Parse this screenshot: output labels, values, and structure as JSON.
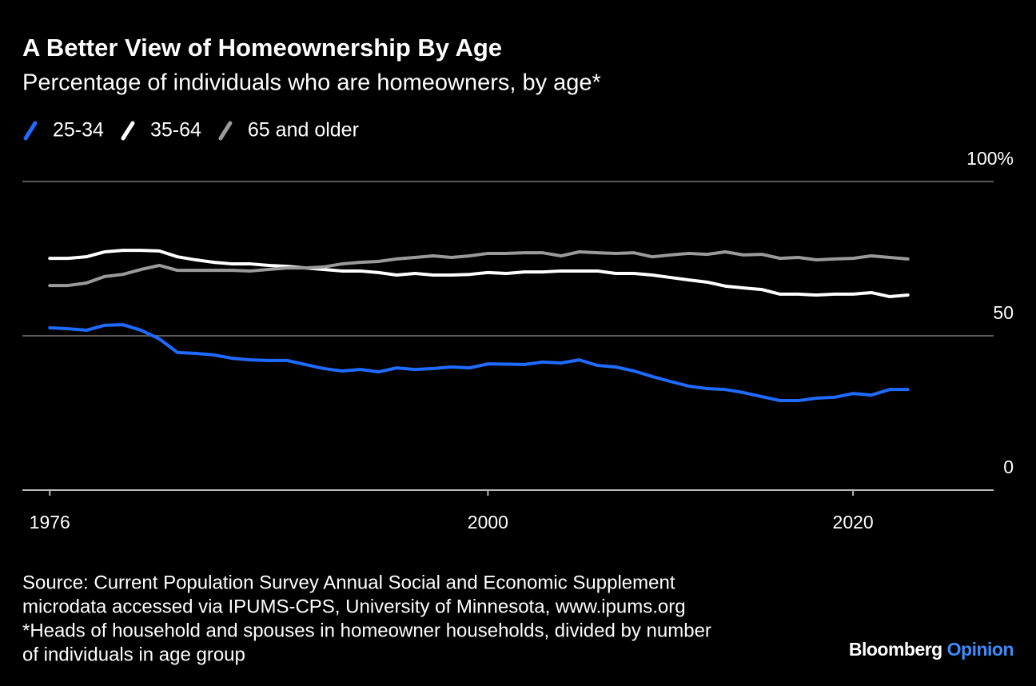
{
  "chart_data": {
    "type": "line",
    "title": "A Better View of Homeownership By Age",
    "subtitle": "Percentage of individuals who are homeowners, by age*",
    "x": [
      1976,
      1977,
      1978,
      1979,
      1980,
      1981,
      1982,
      1983,
      1984,
      1985,
      1986,
      1987,
      1988,
      1989,
      1990,
      1991,
      1992,
      1993,
      1994,
      1995,
      1996,
      1997,
      1998,
      1999,
      2000,
      2001,
      2002,
      2003,
      2004,
      2005,
      2006,
      2007,
      2008,
      2009,
      2010,
      2011,
      2012,
      2013,
      2014,
      2015,
      2016,
      2017,
      2018,
      2019,
      2020,
      2021,
      2022,
      2023
    ],
    "series": [
      {
        "name": "25-34",
        "color": "#1f6bff",
        "values": [
          52.6,
          52.3,
          51.8,
          53.4,
          53.6,
          51.8,
          49.0,
          44.6,
          44.3,
          43.8,
          42.7,
          42.2,
          42.0,
          42.0,
          40.7,
          39.4,
          38.6,
          39.1,
          38.3,
          39.6,
          39.1,
          39.4,
          39.9,
          39.6,
          40.9,
          40.8,
          40.7,
          41.5,
          41.2,
          42.2,
          40.4,
          39.9,
          38.6,
          36.8,
          35.2,
          33.7,
          32.9,
          32.6,
          31.6,
          30.3,
          29.0,
          29.0,
          29.8,
          30.1,
          31.3,
          30.8,
          32.6,
          32.6
        ]
      },
      {
        "name": "35-64",
        "color": "#ffffff",
        "values": [
          75.1,
          75.1,
          75.6,
          77.2,
          77.7,
          77.7,
          77.5,
          75.6,
          74.6,
          73.8,
          73.3,
          73.3,
          72.8,
          72.5,
          72.0,
          71.5,
          71.0,
          71.0,
          70.5,
          69.7,
          70.2,
          69.7,
          69.7,
          69.9,
          70.5,
          70.2,
          70.7,
          70.7,
          71.0,
          71.0,
          71.0,
          70.2,
          70.2,
          69.7,
          68.9,
          68.1,
          67.4,
          66.1,
          65.5,
          65.0,
          63.5,
          63.5,
          63.2,
          63.5,
          63.5,
          64.0,
          62.7,
          63.2
        ]
      },
      {
        "name": "65 and older",
        "color": "#9a9a9a",
        "values": [
          66.3,
          66.3,
          67.1,
          69.2,
          69.9,
          71.5,
          72.8,
          71.2,
          71.2,
          71.2,
          71.2,
          71.0,
          71.5,
          72.0,
          72.0,
          72.3,
          73.3,
          73.8,
          74.1,
          74.9,
          75.4,
          75.9,
          75.4,
          75.9,
          76.7,
          76.7,
          76.9,
          76.9,
          75.9,
          77.2,
          76.9,
          76.7,
          76.9,
          75.6,
          76.2,
          76.7,
          76.4,
          77.2,
          76.2,
          76.4,
          75.1,
          75.4,
          74.6,
          74.9,
          75.1,
          75.9,
          75.4,
          74.9
        ]
      }
    ],
    "xlim": [
      1974.5,
      2027.7
    ],
    "xticks": [
      1976,
      2000,
      2020
    ],
    "ylim": [
      0,
      100
    ],
    "yticks": [
      0,
      50,
      {
        "value": 100,
        "label": "100%"
      }
    ],
    "grid": true,
    "source": [
      "Source: Current Population Survey Annual Social and Economic Supplement",
      "microdata accessed via IPUMS-CPS, University of Minnesota, www.ipums.org"
    ],
    "note": [
      "*Heads of household and spouses in homeowner households, divided by number",
      "of individuals in age group"
    ],
    "brand": [
      "Bloomberg",
      "Opinion"
    ]
  }
}
